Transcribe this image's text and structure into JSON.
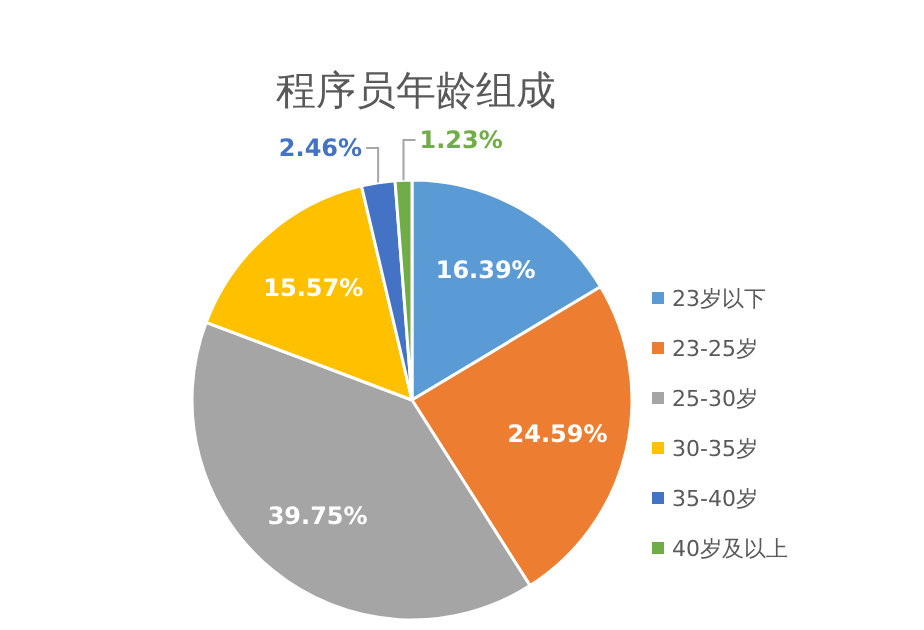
{
  "chart_data": {
    "type": "pie",
    "title": "程序员年龄组成",
    "categories": [
      "23岁以下",
      "23-25岁",
      "25-30岁",
      "30-35岁",
      "35-40岁",
      "40岁及以上"
    ],
    "values": [
      16.39,
      24.59,
      39.75,
      15.57,
      2.46,
      1.23
    ],
    "colors": [
      "#5b9bd5",
      "#ed7d31",
      "#a5a5a5",
      "#ffc000",
      "#4472c4",
      "#70ad47"
    ],
    "value_labels": [
      "16.39%",
      "24.59%",
      "39.75%",
      "15.57%",
      "2.46%",
      "1.23%"
    ],
    "legend": "right"
  }
}
